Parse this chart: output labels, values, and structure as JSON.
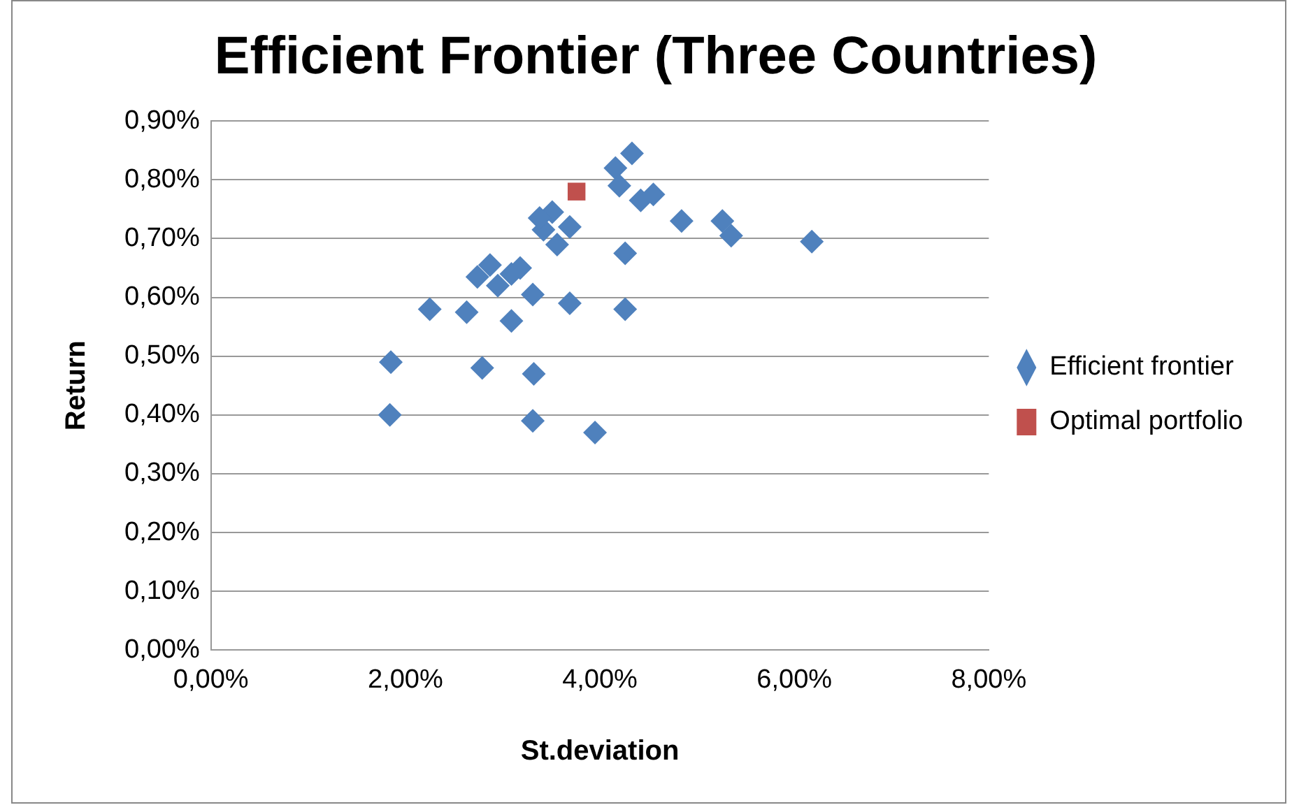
{
  "chart_data": {
    "type": "scatter",
    "title": "Efficient Frontier (Three Countries)",
    "xlabel": "St.deviation",
    "ylabel": "Return",
    "xlim": [
      0,
      8
    ],
    "xticks": [
      {
        "value": 0,
        "label": "0,00%"
      },
      {
        "value": 2,
        "label": "2,00%"
      },
      {
        "value": 4,
        "label": "4,00%"
      },
      {
        "value": 6,
        "label": "6,00%"
      },
      {
        "value": 8,
        "label": "8,00%"
      }
    ],
    "ylim": [
      0,
      0.9
    ],
    "yticks": [
      {
        "value": 0,
        "label": "0,00%"
      },
      {
        "value": 0.1,
        "label": "0,10%"
      },
      {
        "value": 0.2,
        "label": "0,20%"
      },
      {
        "value": 0.3,
        "label": "0,30%"
      },
      {
        "value": 0.4,
        "label": "0,40%"
      },
      {
        "value": 0.5,
        "label": "0,50%"
      },
      {
        "value": 0.6,
        "label": "0,60%"
      },
      {
        "value": 0.7,
        "label": "0,70%"
      },
      {
        "value": 0.8,
        "label": "0,80%"
      },
      {
        "value": 0.9,
        "label": "0,90%"
      }
    ],
    "grid": "y",
    "legend": "right",
    "series": [
      {
        "name": "Efficient frontier",
        "color": "#4f81bd",
        "marker": "diamond",
        "x": [
          1.84,
          1.85,
          2.25,
          2.63,
          2.79,
          3.09,
          3.32,
          3.31,
          3.95,
          3.69,
          4.26,
          4.26,
          3.31,
          2.74,
          2.87,
          3.18,
          3.09,
          2.95,
          3.42,
          3.6,
          3.69,
          3.51,
          3.38,
          3.56,
          4.16,
          4.33,
          4.2,
          4.42,
          4.55,
          4.84,
          5.26,
          5.35,
          6.18
        ],
        "values": [
          0.4,
          0.49,
          0.58,
          0.575,
          0.48,
          0.56,
          0.47,
          0.39,
          0.37,
          0.59,
          0.58,
          0.675,
          0.605,
          0.635,
          0.655,
          0.65,
          0.64,
          0.62,
          0.715,
          null,
          0.72,
          0.745,
          0.735,
          0.69,
          0.82,
          0.845,
          0.79,
          0.765,
          0.775,
          0.73,
          0.73,
          0.705,
          0.695
        ]
      },
      {
        "name": "Optimal portfolio",
        "color": "#c0504d",
        "marker": "square",
        "x": [
          3.76
        ],
        "values": [
          0.78
        ]
      }
    ]
  }
}
